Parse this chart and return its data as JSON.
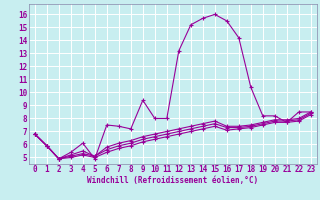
{
  "xlabel": "Windchill (Refroidissement éolien,°C)",
  "bg_color": "#c8eef0",
  "grid_color": "#ffffff",
  "line_color": "#990099",
  "x_ticks": [
    0,
    1,
    2,
    3,
    4,
    5,
    6,
    7,
    8,
    9,
    10,
    11,
    12,
    13,
    14,
    15,
    16,
    17,
    18,
    19,
    20,
    21,
    22,
    23
  ],
  "y_ticks": [
    5,
    6,
    7,
    8,
    9,
    10,
    11,
    12,
    13,
    14,
    15,
    16
  ],
  "ylim": [
    4.5,
    16.8
  ],
  "xlim": [
    -0.5,
    23.5
  ],
  "series": [
    [
      6.8,
      5.9,
      4.9,
      5.4,
      6.1,
      4.9,
      7.5,
      7.4,
      7.2,
      9.4,
      8.0,
      8.0,
      13.2,
      15.2,
      15.7,
      16.0,
      15.5,
      14.2,
      10.4,
      8.2,
      8.2,
      7.7,
      8.5,
      8.5
    ],
    [
      6.8,
      5.9,
      4.9,
      5.2,
      5.5,
      5.1,
      5.8,
      6.1,
      6.3,
      6.6,
      6.8,
      7.0,
      7.2,
      7.4,
      7.6,
      7.8,
      7.4,
      7.4,
      7.5,
      7.7,
      7.9,
      7.9,
      8.0,
      8.5
    ],
    [
      6.8,
      5.9,
      4.9,
      5.0,
      5.2,
      5.0,
      5.4,
      5.7,
      5.9,
      6.2,
      6.4,
      6.6,
      6.8,
      7.0,
      7.2,
      7.4,
      7.1,
      7.2,
      7.3,
      7.5,
      7.7,
      7.7,
      7.8,
      8.3
    ],
    [
      6.8,
      5.9,
      4.9,
      5.1,
      5.3,
      5.1,
      5.6,
      5.9,
      6.1,
      6.4,
      6.6,
      6.8,
      7.0,
      7.2,
      7.4,
      7.6,
      7.3,
      7.3,
      7.4,
      7.6,
      7.8,
      7.8,
      7.9,
      8.4
    ]
  ],
  "tick_fontsize": 5.5,
  "xlabel_fontsize": 5.5
}
